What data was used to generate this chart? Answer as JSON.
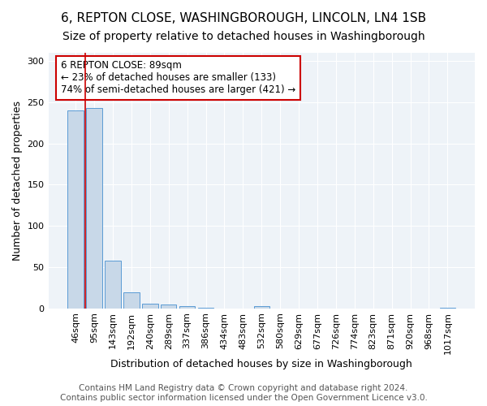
{
  "title1": "6, REPTON CLOSE, WASHINGBOROUGH, LINCOLN, LN4 1SB",
  "title2": "Size of property relative to detached houses in Washingborough",
  "xlabel": "Distribution of detached houses by size in Washingborough",
  "ylabel": "Number of detached properties",
  "bin_labels": [
    "46sqm",
    "95sqm",
    "143sqm",
    "192sqm",
    "240sqm",
    "289sqm",
    "337sqm",
    "386sqm",
    "434sqm",
    "483sqm",
    "532sqm",
    "580sqm",
    "629sqm",
    "677sqm",
    "726sqm",
    "774sqm",
    "823sqm",
    "871sqm",
    "920sqm",
    "968sqm",
    "1017sqm"
  ],
  "bar_heights": [
    240,
    243,
    58,
    19,
    6,
    5,
    3,
    1,
    0,
    0,
    3,
    0,
    0,
    0,
    0,
    0,
    0,
    0,
    0,
    0,
    1
  ],
  "property_bin_index": 1,
  "bar_color": "#c8d8e8",
  "bar_edge_color": "#5b9bd5",
  "vline_color": "#cc0000",
  "annotation_text": "6 REPTON CLOSE: 89sqm\n← 23% of detached houses are smaller (133)\n74% of semi-detached houses are larger (421) →",
  "annotation_box_color": "#ffffff",
  "annotation_border_color": "#cc0000",
  "ylim": [
    0,
    310
  ],
  "yticks": [
    0,
    50,
    100,
    150,
    200,
    250,
    300
  ],
  "footer1": "Contains HM Land Registry data © Crown copyright and database right 2024.",
  "footer2": "Contains public sector information licensed under the Open Government Licence v3.0.",
  "title1_fontsize": 11,
  "title2_fontsize": 10,
  "xlabel_fontsize": 9,
  "ylabel_fontsize": 9,
  "tick_fontsize": 8,
  "annotation_fontsize": 8.5,
  "footer_fontsize": 7.5,
  "bg_color": "#eef3f8"
}
